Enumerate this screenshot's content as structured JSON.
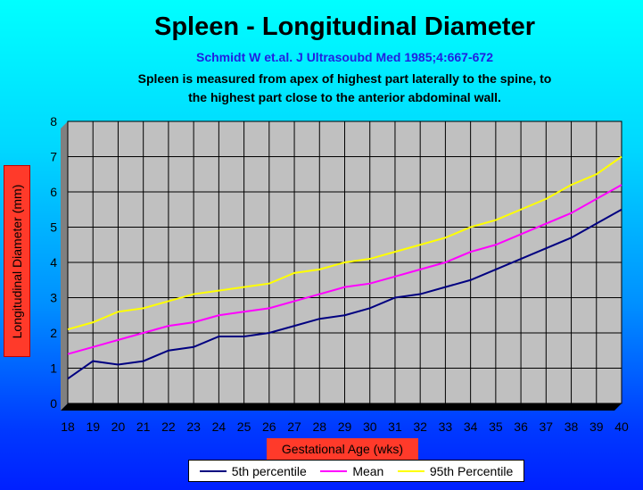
{
  "chart_data": {
    "type": "line",
    "title": "Spleen - Longitudinal Diameter",
    "subtitle": "Schmidt W et.al. J Ultrasoubd Med 1985;4:667-672",
    "description": [
      "Spleen is measured from apex of highest part laterally to the spine, to",
      "the highest part close to the anterior abdominal wall."
    ],
    "xlabel": "Gestational Age (wks)",
    "ylabel": "Longitudinal Diameter (mm)",
    "x": [
      18,
      19,
      20,
      21,
      22,
      23,
      24,
      25,
      26,
      27,
      28,
      29,
      30,
      31,
      32,
      33,
      34,
      35,
      36,
      37,
      38,
      39,
      40
    ],
    "xlim": [
      18,
      40
    ],
    "ylim": [
      0,
      8
    ],
    "yticks": [
      0,
      1,
      2,
      3,
      4,
      5,
      6,
      7,
      8
    ],
    "grid": true,
    "legend_position": "bottom",
    "series": [
      {
        "name": "5th percentile",
        "color": "#000080",
        "values": [
          0.7,
          1.2,
          1.1,
          1.2,
          1.5,
          1.6,
          1.9,
          1.9,
          2.0,
          2.2,
          2.4,
          2.5,
          2.7,
          3.0,
          3.1,
          3.3,
          3.5,
          3.8,
          4.1,
          4.4,
          4.7,
          5.1,
          5.5
        ]
      },
      {
        "name": "Mean",
        "color": "#ff00ff",
        "values": [
          1.4,
          1.6,
          1.8,
          2.0,
          2.2,
          2.3,
          2.5,
          2.6,
          2.7,
          2.9,
          3.1,
          3.3,
          3.4,
          3.6,
          3.8,
          4.0,
          4.3,
          4.5,
          4.8,
          5.1,
          5.4,
          5.8,
          6.2
        ]
      },
      {
        "name": "95th Percentile",
        "color": "#ffff00",
        "values": [
          2.1,
          2.3,
          2.6,
          2.7,
          2.9,
          3.1,
          3.2,
          3.3,
          3.4,
          3.7,
          3.8,
          4.0,
          4.1,
          4.3,
          4.5,
          4.7,
          5.0,
          5.2,
          5.5,
          5.8,
          6.2,
          6.5,
          7.0
        ]
      }
    ],
    "plot_background": "#c0c0c0"
  }
}
